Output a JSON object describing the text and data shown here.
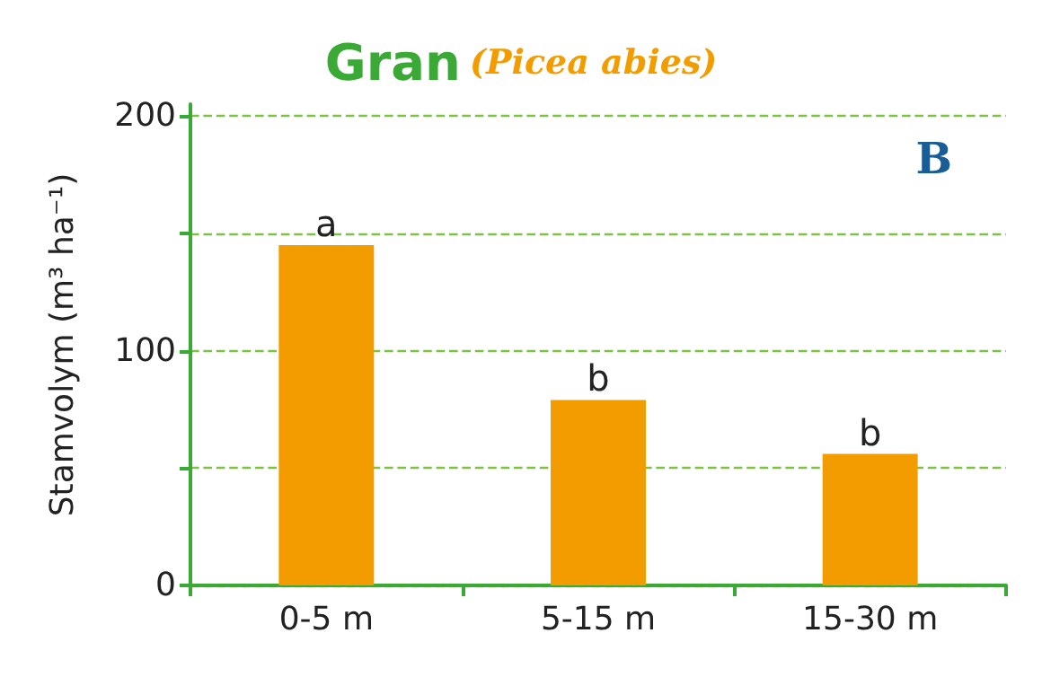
{
  "chart_data": {
    "type": "bar",
    "title": "Gran",
    "subtitle": "(Picea abies)",
    "ylabel": "Stamvolym (m³ ha⁻¹)",
    "categories": [
      "0-5 m",
      "5-15 m",
      "15-30 m"
    ],
    "values": [
      145,
      79,
      56
    ],
    "color": "#f39c00",
    "ylim": [
      0,
      205
    ],
    "yticks": [
      0,
      {
        "value": 50,
        "label": null
      },
      100,
      {
        "value": 150,
        "label": null
      },
      200
    ],
    "grid": "y",
    "annotations": [
      "B",
      {
        "text": "a",
        "x": "0-5 m",
        "y": 145
      },
      {
        "text": "b",
        "x": "5-15 m",
        "y": 79
      },
      {
        "text": "b",
        "x": "15-30 m",
        "y": 56
      }
    ]
  }
}
